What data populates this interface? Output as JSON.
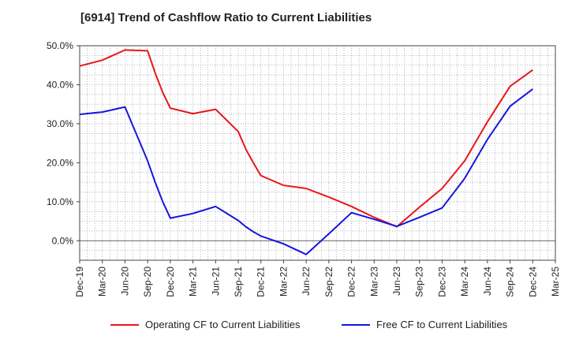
{
  "title": "[6914]  Trend of Cashflow Ratio to Current Liabilities",
  "chart_data": {
    "type": "line",
    "title": "[6914]  Trend of Cashflow Ratio to Current Liabilities",
    "xlabel": "",
    "ylabel": "",
    "ylim": [
      -5,
      50
    ],
    "yticks": [
      0,
      10,
      20,
      30,
      40,
      50
    ],
    "ytick_labels": [
      "0.0%",
      "10.0%",
      "20.0%",
      "30.0%",
      "40.0%",
      "50.0%"
    ],
    "x_tick_labels": [
      "Dec-19",
      "Mar-20",
      "Jun-20",
      "Sep-20",
      "Dec-20",
      "Mar-21",
      "Jun-21",
      "Sep-21",
      "Dec-21",
      "Mar-22",
      "Jun-22",
      "Sep-22",
      "Dec-22",
      "Mar-23",
      "Jun-23",
      "Sep-23",
      "Dec-23",
      "Mar-24",
      "Jun-24",
      "Sep-24",
      "Dec-24",
      "Mar-25"
    ],
    "grid": true,
    "legend_position": "bottom",
    "series": [
      {
        "name": "Operating CF to Current Liabilities",
        "color": "#e8161b",
        "points": [
          [
            "Dec-19",
            44.8
          ],
          [
            "Mar-20",
            46.3
          ],
          [
            "Jun-20",
            48.9
          ],
          [
            "Sep-20",
            48.7
          ],
          [
            "Oct-20",
            43.0
          ],
          [
            "Nov-20",
            38.0
          ],
          [
            "Dec-20",
            34.0
          ],
          [
            "Mar-21",
            32.6
          ],
          [
            "Jun-21",
            33.7
          ],
          [
            "Sep-21",
            28.0
          ],
          [
            "Oct-21",
            23.5
          ],
          [
            "Nov-21",
            20.0
          ],
          [
            "Dec-21",
            16.7
          ],
          [
            "Mar-22",
            14.2
          ],
          [
            "Jun-22",
            13.4
          ],
          [
            "Sep-22",
            11.2
          ],
          [
            "Dec-22",
            8.8
          ],
          [
            "Mar-23",
            6.0
          ],
          [
            "Jun-23",
            3.6
          ],
          [
            "Sep-23",
            8.6
          ],
          [
            "Dec-23",
            13.4
          ],
          [
            "Mar-24",
            20.5
          ],
          [
            "Jun-24",
            30.5
          ],
          [
            "Sep-24",
            39.6
          ],
          [
            "Dec-24",
            43.8
          ]
        ]
      },
      {
        "name": "Free CF to Current Liabilities",
        "color": "#1515e0",
        "points": [
          [
            "Dec-19",
            32.4
          ],
          [
            "Mar-20",
            33.0
          ],
          [
            "Jun-20",
            34.3
          ],
          [
            "Sep-20",
            20.5
          ],
          [
            "Oct-20",
            15.0
          ],
          [
            "Nov-20",
            10.0
          ],
          [
            "Dec-20",
            5.8
          ],
          [
            "Mar-21",
            7.0
          ],
          [
            "Jun-21",
            8.8
          ],
          [
            "Sep-21",
            5.2
          ],
          [
            "Oct-21",
            3.6
          ],
          [
            "Nov-21",
            2.3
          ],
          [
            "Dec-21",
            1.2
          ],
          [
            "Mar-22",
            -0.8
          ],
          [
            "Jun-22",
            -3.5
          ],
          [
            "Sep-22",
            1.8
          ],
          [
            "Dec-22",
            7.2
          ],
          [
            "Mar-23",
            5.5
          ],
          [
            "Jun-23",
            3.7
          ],
          [
            "Sep-23",
            6.0
          ],
          [
            "Dec-23",
            8.4
          ],
          [
            "Mar-24",
            16.0
          ],
          [
            "Jun-24",
            26.0
          ],
          [
            "Sep-24",
            34.5
          ],
          [
            "Dec-24",
            38.9
          ]
        ]
      }
    ]
  }
}
